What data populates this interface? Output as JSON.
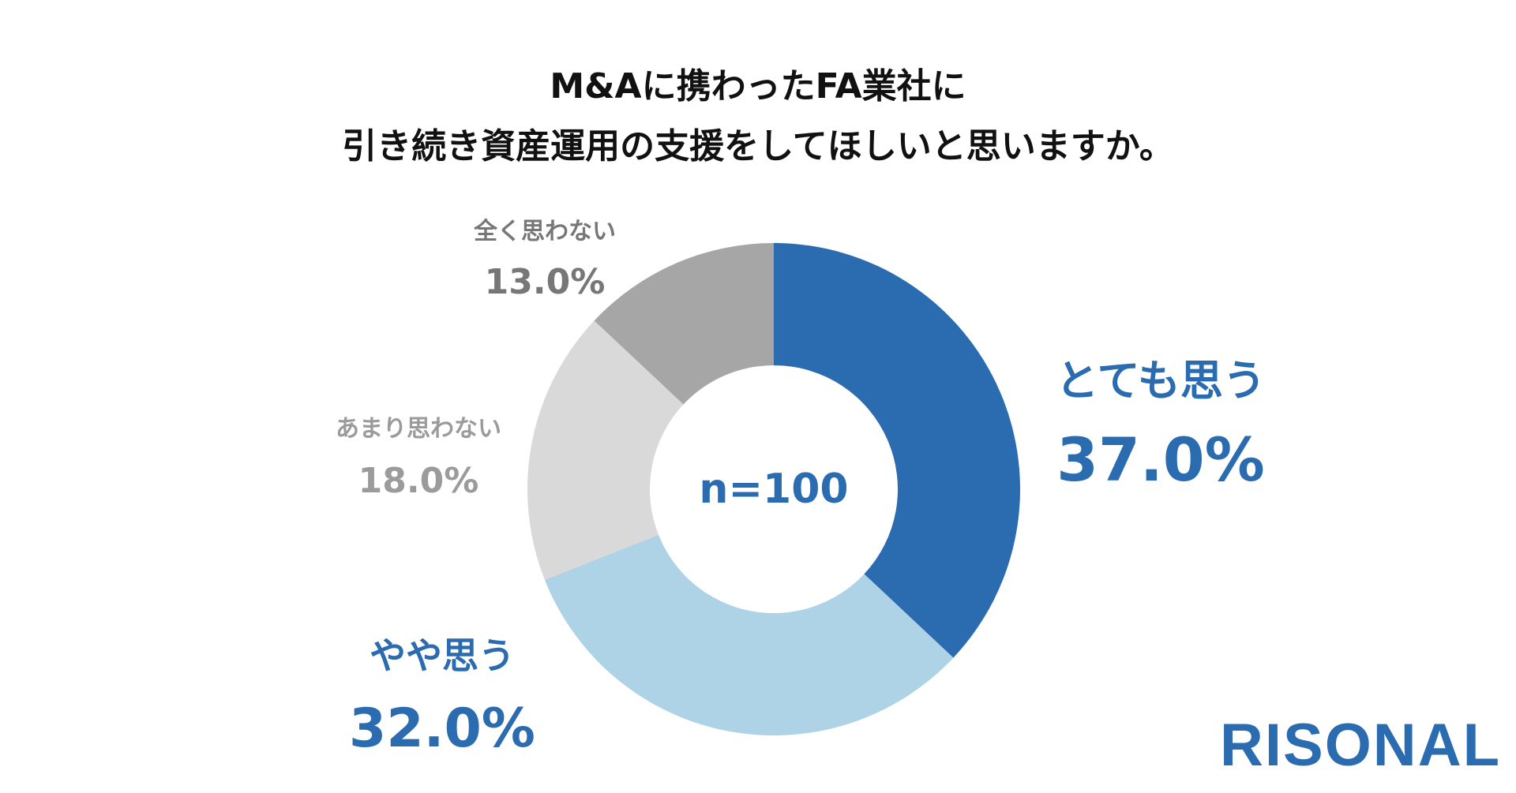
{
  "title_lines": [
    "M&Aに携わったFA業社に",
    "引き続き資産運用の支援をしてほしいと思いますか。"
  ],
  "center_label": "n=100",
  "logo": "RISONAL",
  "colors": {
    "title": "#111111",
    "accent": "#2b6cb0"
  },
  "chart_data": {
    "type": "pie",
    "categories": [
      "とても思う",
      "やや思う",
      "あまり思わない",
      "全く思わない"
    ],
    "values": [
      37.0,
      32.0,
      18.0,
      13.0
    ],
    "value_labels": [
      "37.0%",
      "32.0%",
      "18.0%",
      "13.0%"
    ],
    "colors": [
      "#2b6cb0",
      "#aed2e6",
      "#d9d9d9",
      "#a6a6a6"
    ],
    "start_angle": "top, clockwise",
    "style": "donut"
  }
}
